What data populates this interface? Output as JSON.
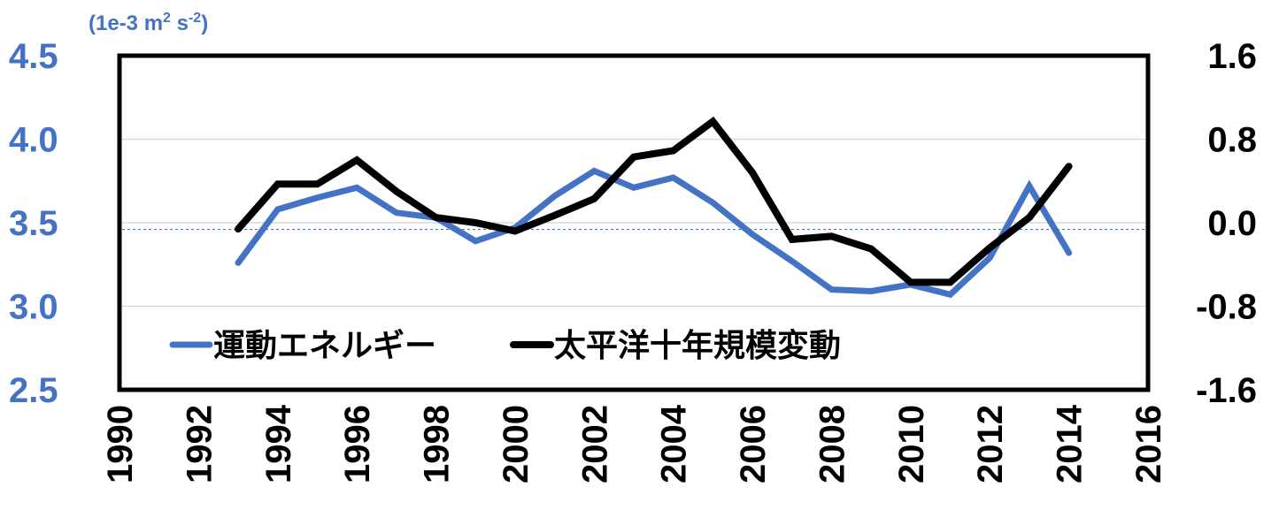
{
  "chart_data": {
    "type": "line",
    "title": "",
    "x": [
      1993,
      1994,
      1995,
      1996,
      1997,
      1998,
      1999,
      2000,
      2001,
      2002,
      2003,
      2004,
      2005,
      2006,
      2007,
      2008,
      2009,
      2010,
      2011,
      2012,
      2013,
      2014
    ],
    "x_ticks": [
      "1990",
      "1992",
      "1994",
      "1996",
      "1998",
      "2000",
      "2002",
      "2004",
      "2006",
      "2008",
      "2010",
      "2012",
      "2014",
      "2016"
    ],
    "xlim": [
      1990,
      2016
    ],
    "left_axis": {
      "unit_label": "(1e-3 m",
      "unit_sup1": "2",
      "unit_mid": " s",
      "unit_sup2": "-2",
      "unit_end": ")",
      "ylim": [
        2.5,
        4.5
      ],
      "ticks": [
        "4.5",
        "4.0",
        "3.5",
        "3.0",
        "2.5"
      ],
      "color": "#4472C4"
    },
    "right_axis": {
      "ylim": [
        -1.6,
        1.6
      ],
      "ticks": [
        "1.6",
        "0.8",
        "0.0",
        "-0.8",
        "-1.6"
      ],
      "color": "#000000"
    },
    "series": [
      {
        "name": "運動エネルギー",
        "axis": "left",
        "color": "#4472C4",
        "values": [
          3.26,
          3.58,
          3.65,
          3.71,
          3.56,
          3.53,
          3.39,
          3.47,
          3.66,
          3.81,
          3.71,
          3.77,
          3.62,
          3.43,
          3.27,
          3.1,
          3.09,
          3.13,
          3.07,
          3.29,
          3.72,
          3.32
        ]
      },
      {
        "name": "太平洋十年規模変動",
        "axis": "right",
        "color": "#000000",
        "values": [
          -0.06,
          0.37,
          0.37,
          0.6,
          0.3,
          0.05,
          0.0,
          -0.08,
          0.07,
          0.23,
          0.63,
          0.69,
          0.97,
          0.48,
          -0.16,
          -0.13,
          -0.25,
          -0.57,
          -0.57,
          -0.24,
          0.05,
          0.54
        ]
      }
    ],
    "reference_line": {
      "axis": "left",
      "value": 3.46,
      "style": "dotted",
      "color": "#4472C4"
    },
    "grid": true,
    "legend_position": "lower-left inside"
  }
}
